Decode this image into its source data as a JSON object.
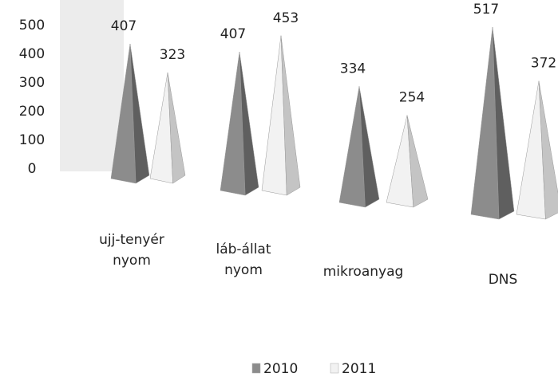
{
  "chart_data": {
    "type": "pyramid",
    "categories": [
      "ujj-tenyér nyom",
      "láb-állat nyom",
      "mikroanyag",
      "DNS"
    ],
    "series": [
      {
        "name": "2010",
        "color": "#8c8c8c",
        "values": [
          407,
          407,
          334,
          517
        ]
      },
      {
        "name": "2011",
        "color": "#f2f2f2",
        "values": [
          323,
          453,
          254,
          372
        ]
      }
    ],
    "ylim": [
      0,
      500
    ],
    "yticks": [
      0,
      100,
      200,
      300,
      400,
      500
    ],
    "legend": "bottom"
  }
}
